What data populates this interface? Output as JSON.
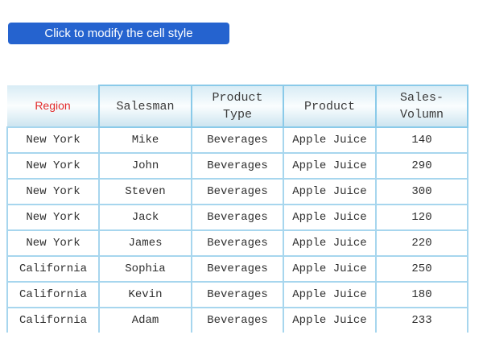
{
  "button": {
    "label": "Click to modify the cell style"
  },
  "table": {
    "headers": [
      "Region",
      "Salesman",
      "Product Type",
      "Product",
      "Sales-Volumn"
    ],
    "rows": [
      [
        "New York",
        "Mike",
        "Beverages",
        "Apple Juice",
        "140"
      ],
      [
        "New York",
        "John",
        "Beverages",
        "Apple Juice",
        "290"
      ],
      [
        "New York",
        "Steven",
        "Beverages",
        "Apple Juice",
        "300"
      ],
      [
        "New York",
        "Jack",
        "Beverages",
        "Apple Juice",
        "120"
      ],
      [
        "New York",
        "James",
        "Beverages",
        "Apple Juice",
        "220"
      ],
      [
        "California",
        "Sophia",
        "Beverages",
        "Apple Juice",
        "250"
      ],
      [
        "California",
        "Kevin",
        "Beverages",
        "Apple Juice",
        "180"
      ],
      [
        "California",
        "Adam",
        "Beverages",
        "Apple Juice",
        "233"
      ]
    ]
  },
  "colors": {
    "button_bg": "#2563cf",
    "button_text": "#ffffff",
    "region_text": "#e32b2b",
    "header_border": "#8acae9",
    "cell_border": "#a7d6ee",
    "header_gradient_top": "#d8ecf5",
    "header_gradient_mid": "#fafdfe",
    "header_gradient_bottom": "#cde5f0",
    "data_text": "#2f2f2f",
    "header_text": "#3b3b3b"
  }
}
